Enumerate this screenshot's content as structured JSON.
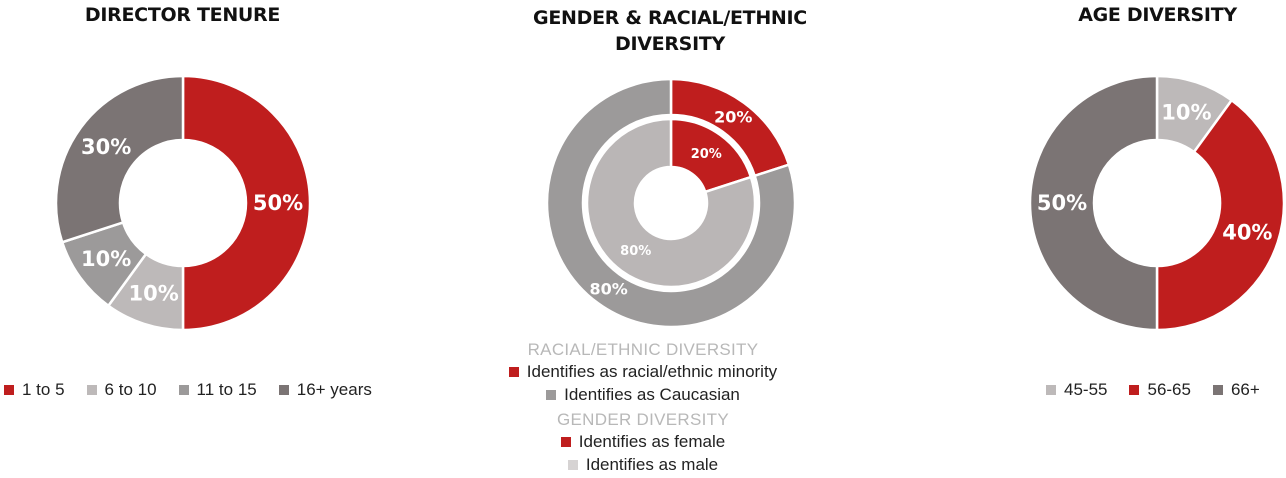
{
  "colors": {
    "red": "#bf1e1e",
    "light_gray": "#bdb9b9",
    "mid_gray": "#9c9a9a",
    "dark_gray": "#7b7474",
    "inner_light": "#bab6b6"
  },
  "chart_data": [
    {
      "type": "pie",
      "title": "DIRECTOR TENURE",
      "categories": [
        "1 to 5",
        "6 to 10",
        "11 to 15",
        "16+ years"
      ],
      "values": [
        50,
        10,
        10,
        30
      ],
      "labels": [
        "50%",
        "10%",
        "10%",
        "30%"
      ],
      "colors": [
        "#bf1e1e",
        "#bdb9b9",
        "#9c9a9a",
        "#7b7474"
      ],
      "legend_position": "bottom"
    },
    {
      "type": "pie",
      "title": "GENDER & RACIAL/ETHNIC\nDIVERSITY",
      "series": [
        {
          "name": "RACIAL/ETHNIC DIVERSITY",
          "ring": "outer",
          "categories": [
            "Identifies as racial/ethnic minority",
            "Identifies as Caucasian"
          ],
          "values": [
            20,
            80
          ],
          "labels": [
            "20%",
            "80%"
          ],
          "colors": [
            "#bf1e1e",
            "#9c9a9a"
          ]
        },
        {
          "name": "GENDER DIVERSITY",
          "ring": "inner",
          "categories": [
            "Identifies as female",
            "Identifies as male"
          ],
          "values": [
            20,
            80
          ],
          "labels": [
            "20%",
            "80%"
          ],
          "colors": [
            "#bf1e1e",
            "#bab6b6"
          ]
        }
      ],
      "legend_position": "bottom"
    },
    {
      "type": "pie",
      "title": "AGE DIVERSITY",
      "categories": [
        "45-55",
        "56-65",
        "66+"
      ],
      "values": [
        10,
        40,
        50
      ],
      "labels": [
        "10%",
        "40%",
        "50%"
      ],
      "colors": [
        "#bdb9b9",
        "#bf1e1e",
        "#7b7474"
      ],
      "legend_position": "bottom"
    }
  ],
  "legend_tenure": [
    "1 to 5",
    "6 to 10",
    "11 to 15",
    "16+ years"
  ],
  "legend_age": [
    "45-55",
    "56-65",
    "66+"
  ],
  "sub_legend": {
    "racial_heading": "RACIAL/ETHNIC DIVERSITY",
    "racial_minority": "Identifies as racial/ethnic minority",
    "racial_caucasian": "Identifies as Caucasian",
    "gender_heading": "GENDER DIVERSITY",
    "gender_female": "Identifies as female",
    "gender_male": "Identifies as male"
  }
}
